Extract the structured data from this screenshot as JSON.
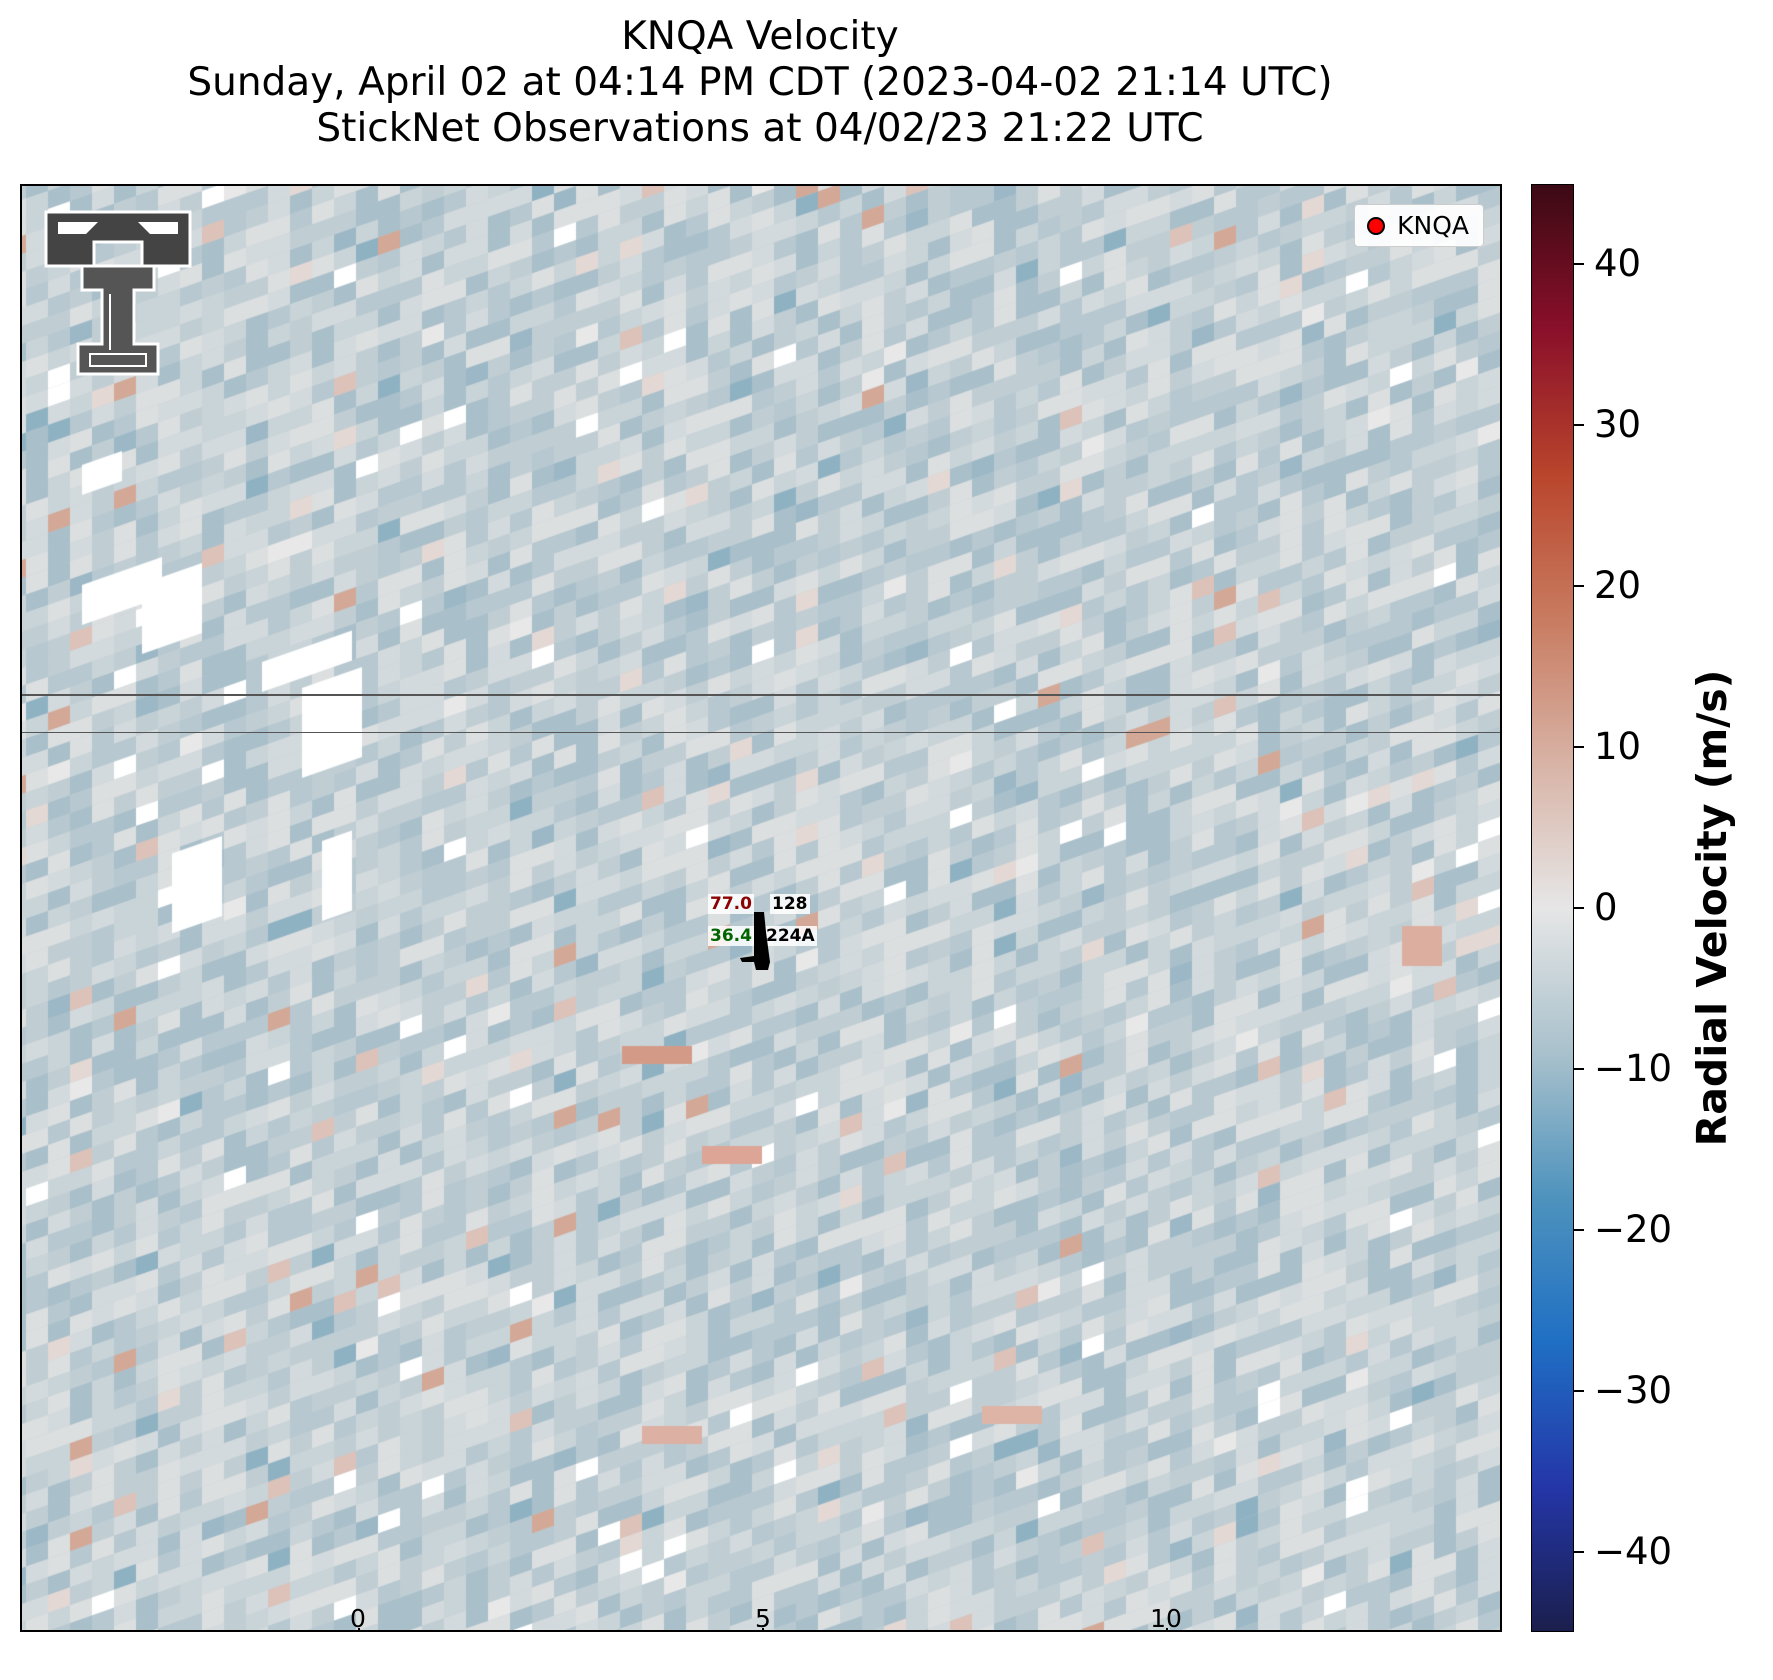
{
  "title": {
    "line1": "KNQA Velocity",
    "line2": "Sunday, April 02 at 04:14 PM CDT (2023-04-02 21:14 UTC)",
    "line3": "StickNet Observations at 04/02/23 21:22 UTC"
  },
  "legend": {
    "label": "KNQA",
    "marker_color": "#ff0000"
  },
  "logo": {
    "name": "texas-tech-double-t"
  },
  "stations": [
    {
      "temp": "77.0",
      "dew": "36.4",
      "id_top": "128",
      "id_bottom": "224A",
      "temp_color": "#8b0000",
      "dew_color": "#006400"
    }
  ],
  "scalebar": {
    "ticks": [
      "0",
      "5",
      "10"
    ],
    "unit": "km"
  },
  "colorbar": {
    "label": "Radial Velocity (m/s)",
    "min": -45,
    "max": 45,
    "ticks": [
      40,
      30,
      20,
      10,
      0,
      -10,
      -20,
      -30,
      -40
    ],
    "tick_labels": [
      "40",
      "30",
      "20",
      "10",
      "0",
      "−10",
      "−20",
      "−30",
      "−40"
    ],
    "colors": [
      "#1b1f4d",
      "#2436a8",
      "#1f6fc4",
      "#4e93bd",
      "#a9c1cc",
      "#e6e6e6",
      "#d8b3a6",
      "#c87b60",
      "#b9452c",
      "#8a0f2a",
      "#3b0a14"
    ]
  },
  "map": {
    "background_color": "#c3d0d6",
    "county_line_color": "#555555"
  }
}
